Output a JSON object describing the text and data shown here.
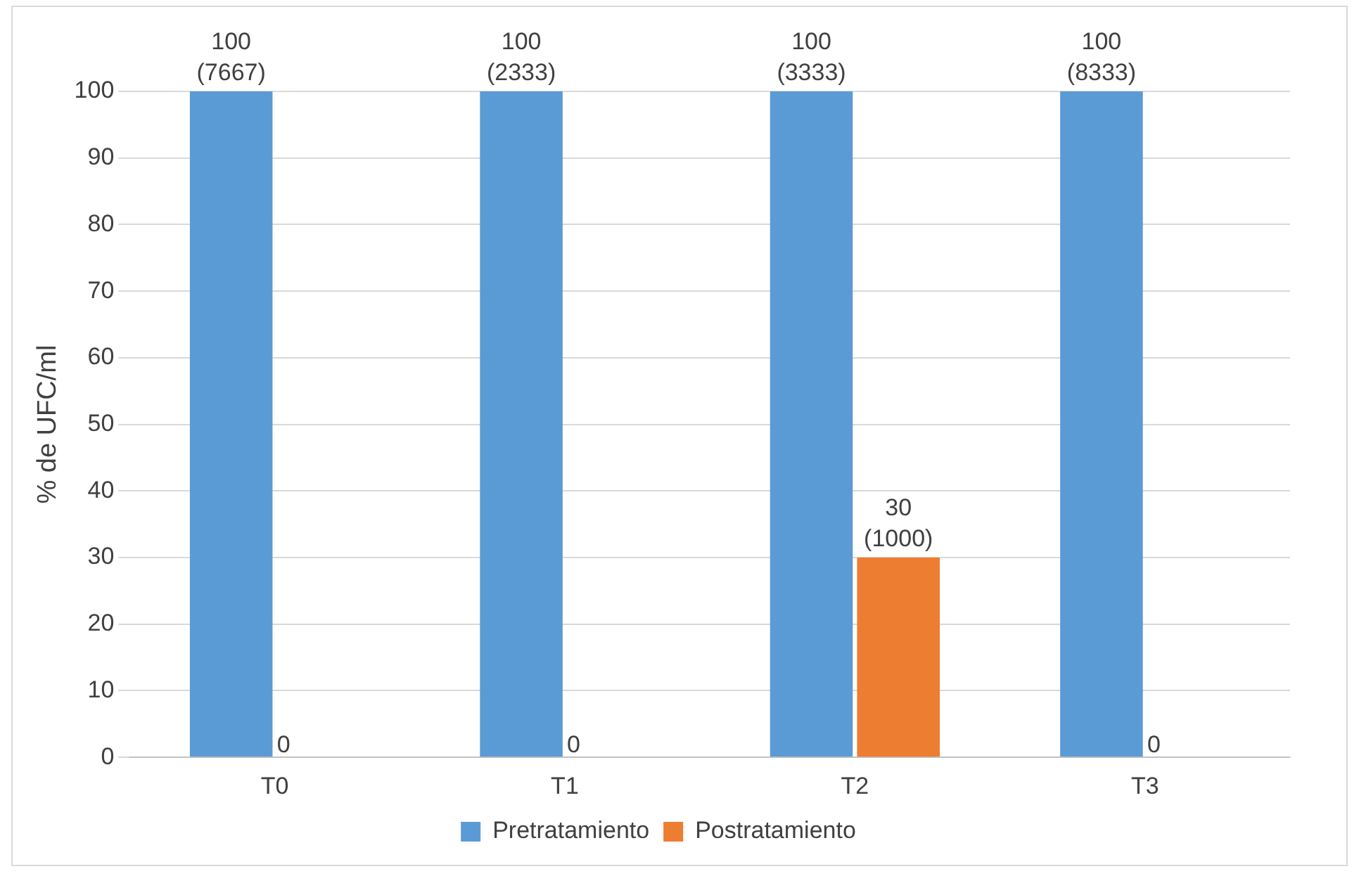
{
  "chart_data": {
    "type": "bar",
    "categories": [
      "T0",
      "T1",
      "T2",
      "T3"
    ],
    "series": [
      {
        "name": "Pretratamiento",
        "color": "#5b9bd5",
        "values": [
          100,
          100,
          100,
          100
        ],
        "value_labels": [
          "100 (7667)",
          "100 (2333)",
          "100 (3333)",
          "100 (8333)"
        ]
      },
      {
        "name": "Postratamiento",
        "color": "#ed7d31",
        "values": [
          0,
          0,
          30,
          0
        ],
        "value_labels": [
          "0",
          "0",
          "30 (1000)",
          "0"
        ]
      }
    ],
    "ylabel": "% de UFC/ml",
    "ylim": [
      0,
      100
    ],
    "yticks": [
      0,
      10,
      20,
      30,
      40,
      50,
      60,
      70,
      80,
      90,
      100
    ],
    "grid": "y",
    "legend": "bottom"
  }
}
